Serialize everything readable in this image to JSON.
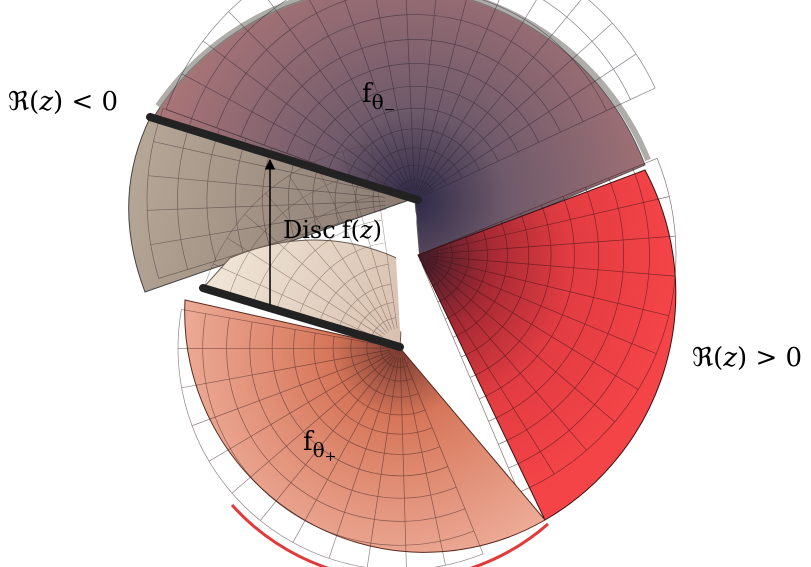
{
  "labels": {
    "re_neg": {
      "sym": "ℜ",
      "paren_open": "(",
      "var": "z",
      "rest": ") < 0"
    },
    "re_pos": {
      "sym": "ℜ",
      "paren_open": "(",
      "var": "z",
      "rest": ") > 0"
    },
    "f_minus": {
      "base": "f",
      "sub": "θ",
      "subsub": "−"
    },
    "f_plus": {
      "base": "f",
      "sub": "θ",
      "subsub": "+"
    },
    "disc": {
      "word": "Disc",
      "f": "f",
      "paren_open": "(",
      "var": "z",
      "paren_close": ")"
    }
  },
  "colors": {
    "upper_sheet": "#9e7276",
    "upper_sheet_edge": "#857f7a",
    "upper_flap": "#b1a293",
    "red_sheet": "#f04246",
    "lower_sheet": "#eca48e",
    "lower_flap": "#eadfcf",
    "grid": "#3a2a2a",
    "cut_line": "#222222",
    "arrow": "#000000"
  }
}
